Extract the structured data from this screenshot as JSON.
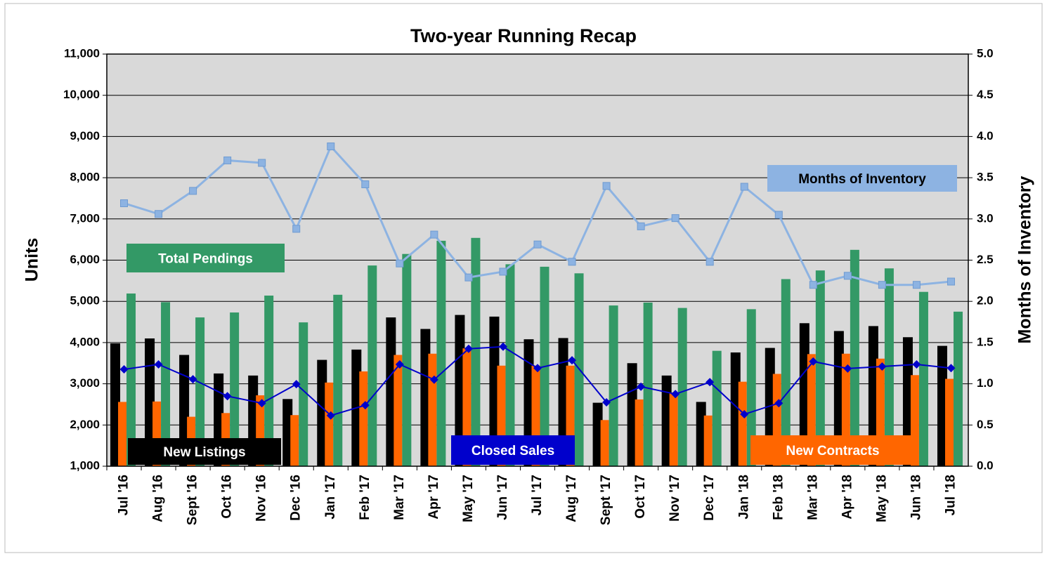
{
  "chart_data": {
    "type": "bar",
    "title": "Two-year Running Recap",
    "y_label": "Units",
    "y2_label": "Months of Inventory",
    "categories": [
      "Jul '16",
      "Aug '16",
      "Sept '16",
      "Oct '16",
      "Nov '16",
      "Dec '16",
      "Jan '17",
      "Feb '17",
      "Mar '17",
      "Apr '17",
      "May '17",
      "Jun '17",
      "Jul '17",
      "Aug '17",
      "Sept '17",
      "Oct '17",
      "Nov '17",
      "Dec '17",
      "Jan '18",
      "Feb '18",
      "Mar '18",
      "Apr '18",
      "May '18",
      "Jun '18",
      "Jul '18"
    ],
    "ylim": [
      1000,
      11000
    ],
    "yticks": [
      {
        "value": 1000,
        "label": "1,000"
      },
      {
        "value": 2000,
        "label": "2,000"
      },
      {
        "value": 3000,
        "label": "3,000"
      },
      {
        "value": 4000,
        "label": "4,000"
      },
      {
        "value": 5000,
        "label": "5,000"
      },
      {
        "value": 6000,
        "label": "6,000"
      },
      {
        "value": 7000,
        "label": "7,000"
      },
      {
        "value": 8000,
        "label": "8,000"
      },
      {
        "value": 9000,
        "label": "9,000"
      },
      {
        "value": 10000,
        "label": "10,000"
      },
      {
        "value": 11000,
        "label": "11,000"
      }
    ],
    "y2lim": [
      0,
      5
    ],
    "y2ticks": [
      {
        "value": 0,
        "label": "0.0"
      },
      {
        "value": 0.5,
        "label": "0.5"
      },
      {
        "value": 1,
        "label": "1.0"
      },
      {
        "value": 1.5,
        "label": "1.5"
      },
      {
        "value": 2,
        "label": "2.0"
      },
      {
        "value": 2.5,
        "label": "2.5"
      },
      {
        "value": 3,
        "label": "3.0"
      },
      {
        "value": 3.5,
        "label": "3.5"
      },
      {
        "value": 4,
        "label": "4.0"
      },
      {
        "value": 4.5,
        "label": "4.5"
      },
      {
        "value": 5,
        "label": "5.0"
      }
    ],
    "grid": true,
    "series": [
      {
        "name": "New Listings",
        "type": "bar",
        "color": "#000000",
        "values": [
          3980,
          4100,
          3700,
          3250,
          3200,
          2630,
          3580,
          3830,
          4610,
          4330,
          4670,
          4630,
          4080,
          4110,
          2540,
          3500,
          3200,
          2560,
          3760,
          3870,
          4470,
          4280,
          4400,
          4130,
          3920
        ]
      },
      {
        "name": "New Contracts",
        "type": "bar",
        "color": "#ff6600",
        "values": [
          2560,
          2570,
          2200,
          2290,
          2720,
          2240,
          3030,
          3300,
          3700,
          3730,
          3860,
          3440,
          3440,
          3440,
          2120,
          2620,
          2790,
          2230,
          3050,
          3240,
          3720,
          3730,
          3610,
          3210,
          3120
        ]
      },
      {
        "name": "Total Pendings",
        "type": "bar",
        "color": "#339966",
        "values": [
          5190,
          4980,
          4610,
          4730,
          5140,
          4490,
          5160,
          5870,
          6150,
          6470,
          6540,
          5900,
          5840,
          5680,
          4900,
          4970,
          4840,
          3800,
          4810,
          5540,
          5750,
          6250,
          5800,
          5230,
          4750
        ]
      },
      {
        "name": "Closed Sales",
        "type": "line",
        "color": "#0000cc",
        "values": [
          3350,
          3470,
          3110,
          2700,
          2530,
          2990,
          2230,
          2480,
          3470,
          3100,
          3850,
          3900,
          3380,
          3570,
          2550,
          2930,
          2750,
          3040,
          2260,
          2530,
          3540,
          3370,
          3420,
          3470,
          3380
        ]
      },
      {
        "name": "Months of Inventory",
        "type": "line",
        "axis": "y2",
        "color": "#8db3e2",
        "values": [
          3.19,
          3.06,
          3.34,
          3.71,
          3.68,
          2.88,
          3.88,
          3.42,
          2.46,
          2.81,
          2.29,
          2.36,
          2.69,
          2.48,
          3.4,
          2.91,
          3.01,
          2.48,
          3.39,
          3.05,
          2.2,
          2.31,
          2.2,
          2.2,
          2.24
        ]
      }
    ]
  }
}
